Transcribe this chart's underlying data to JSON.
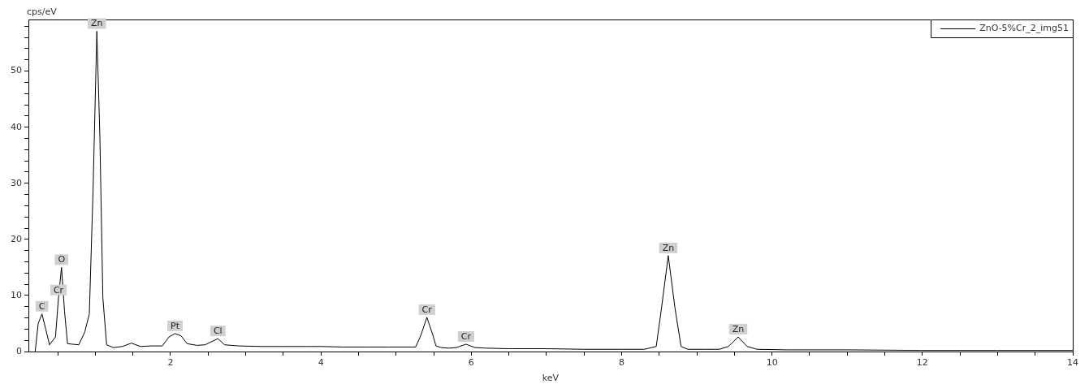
{
  "chart_data": {
    "type": "line",
    "xlabel": "keV",
    "ylabel": "cps/eV",
    "legend": "top right",
    "grid": false,
    "marker": "none",
    "line_style": "solid",
    "xlim": [
      0.11,
      14
    ],
    "ylim": [
      0,
      59.2
    ],
    "xticks": [
      {
        "value": 0.5,
        "label": null
      },
      {
        "value": 1,
        "label": null
      },
      {
        "value": 1.5,
        "label": null
      },
      2,
      {
        "value": 2.5,
        "label": null
      },
      {
        "value": 3,
        "label": null
      },
      {
        "value": 3.5,
        "label": null
      },
      4,
      {
        "value": 4.5,
        "label": null
      },
      {
        "value": 5,
        "label": null
      },
      {
        "value": 5.5,
        "label": null
      },
      6,
      {
        "value": 6.5,
        "label": null
      },
      {
        "value": 7,
        "label": null
      },
      {
        "value": 7.5,
        "label": null
      },
      8,
      {
        "value": 8.5,
        "label": null
      },
      {
        "value": 9,
        "label": null
      },
      {
        "value": 9.5,
        "label": null
      },
      10,
      {
        "value": 10.5,
        "label": null
      },
      {
        "value": 11,
        "label": null
      },
      {
        "value": 11.5,
        "label": null
      },
      12,
      {
        "value": 12.5,
        "label": null
      },
      {
        "value": 13,
        "label": null
      },
      {
        "value": 13.5,
        "label": null
      },
      14
    ],
    "yticks": [
      0,
      {
        "value": 2,
        "label": null
      },
      {
        "value": 4,
        "label": null
      },
      {
        "value": 6,
        "label": null
      },
      {
        "value": 8,
        "label": null
      },
      10,
      {
        "value": 12,
        "label": null
      },
      {
        "value": 14,
        "label": null
      },
      {
        "value": 16,
        "label": null
      },
      {
        "value": 18,
        "label": null
      },
      20,
      {
        "value": 22,
        "label": null
      },
      {
        "value": 24,
        "label": null
      },
      {
        "value": 26,
        "label": null
      },
      {
        "value": 28,
        "label": null
      },
      30,
      {
        "value": 32,
        "label": null
      },
      {
        "value": 34,
        "label": null
      },
      {
        "value": 36,
        "label": null
      },
      {
        "value": 38,
        "label": null
      },
      40,
      {
        "value": 42,
        "label": null
      },
      {
        "value": 44,
        "label": null
      },
      {
        "value": 46,
        "label": null
      },
      {
        "value": 48,
        "label": null
      },
      50,
      {
        "value": 52,
        "label": null
      },
      {
        "value": 54,
        "label": null
      },
      {
        "value": 56,
        "label": null
      },
      {
        "value": 58,
        "label": null
      }
    ],
    "series": [
      {
        "name": "ZnO-5%Cr_2_img51",
        "color": "#000000",
        "x": [
          0.2,
          0.24,
          0.29,
          0.34,
          0.39,
          0.47,
          0.51,
          0.55,
          0.59,
          0.63,
          0.7,
          0.78,
          0.86,
          0.92,
          0.97,
          1.02,
          1.06,
          1.1,
          1.15,
          1.24,
          1.36,
          1.48,
          1.6,
          1.75,
          1.89,
          1.98,
          2.06,
          2.14,
          2.22,
          2.35,
          2.46,
          2.63,
          2.72,
          2.9,
          3.2,
          3.5,
          3.8,
          4.0,
          4.3,
          4.6,
          4.9,
          5.2,
          5.26,
          5.33,
          5.41,
          5.49,
          5.53,
          5.6,
          5.7,
          5.8,
          5.93,
          6.05,
          6.2,
          6.5,
          7.0,
          7.5,
          8.0,
          8.3,
          8.46,
          8.53,
          8.62,
          8.71,
          8.79,
          8.88,
          9.1,
          9.3,
          9.42,
          9.55,
          9.67,
          9.8,
          10.2,
          11,
          12,
          13,
          14
        ],
        "values": [
          0,
          5.0,
          6.7,
          4.0,
          1.2,
          2.6,
          9.6,
          15.0,
          7.2,
          1.4,
          1.3,
          1.2,
          3.5,
          6.7,
          28.9,
          57.1,
          38.5,
          9.6,
          1.2,
          0.7,
          0.9,
          1.5,
          0.9,
          1.0,
          1.0,
          2.6,
          3.2,
          2.8,
          1.4,
          1.1,
          1.2,
          2.3,
          1.2,
          1.0,
          0.9,
          0.9,
          0.9,
          0.9,
          0.8,
          0.8,
          0.8,
          0.8,
          0.8,
          2.9,
          6.1,
          2.9,
          1.0,
          0.7,
          0.6,
          0.7,
          1.3,
          0.7,
          0.6,
          0.5,
          0.5,
          0.4,
          0.4,
          0.4,
          0.9,
          7.7,
          17.1,
          7.7,
          0.9,
          0.4,
          0.4,
          0.4,
          0.9,
          2.6,
          0.9,
          0.4,
          0.3,
          0.3,
          0.2,
          0.2,
          0.2
        ]
      }
    ],
    "annotations": [
      {
        "text": "C",
        "x": 0.29,
        "y": 6.7
      },
      {
        "text": "O",
        "x": 0.55,
        "y": 15.0
      },
      {
        "text": "Cr",
        "x": 0.51,
        "y": 9.6
      },
      {
        "text": "Zn",
        "x": 1.02,
        "y": 57.1
      },
      {
        "text": "Pt",
        "x": 2.06,
        "y": 3.2
      },
      {
        "text": "Cl",
        "x": 2.63,
        "y": 2.3
      },
      {
        "text": "Cr",
        "x": 5.41,
        "y": 6.1
      },
      {
        "text": "Cr",
        "x": 5.93,
        "y": 1.3
      },
      {
        "text": "Zn",
        "x": 8.62,
        "y": 17.1
      },
      {
        "text": "Zn",
        "x": 9.55,
        "y": 2.6
      }
    ]
  }
}
